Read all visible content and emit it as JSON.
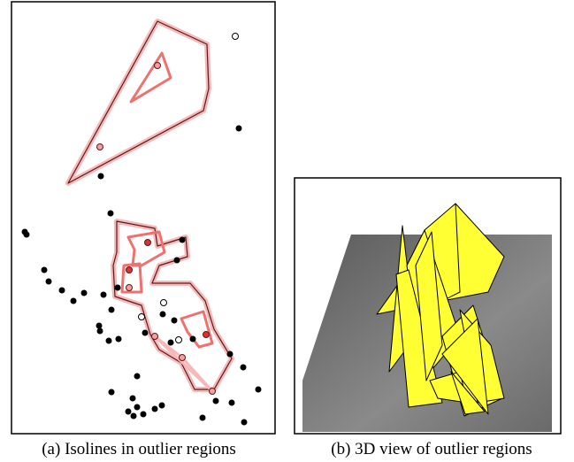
{
  "figure": {
    "panels": [
      {
        "caption": "(a) Isolines in outlier regions"
      },
      {
        "caption": "(b) 3D view of outlier regions"
      }
    ]
  }
}
